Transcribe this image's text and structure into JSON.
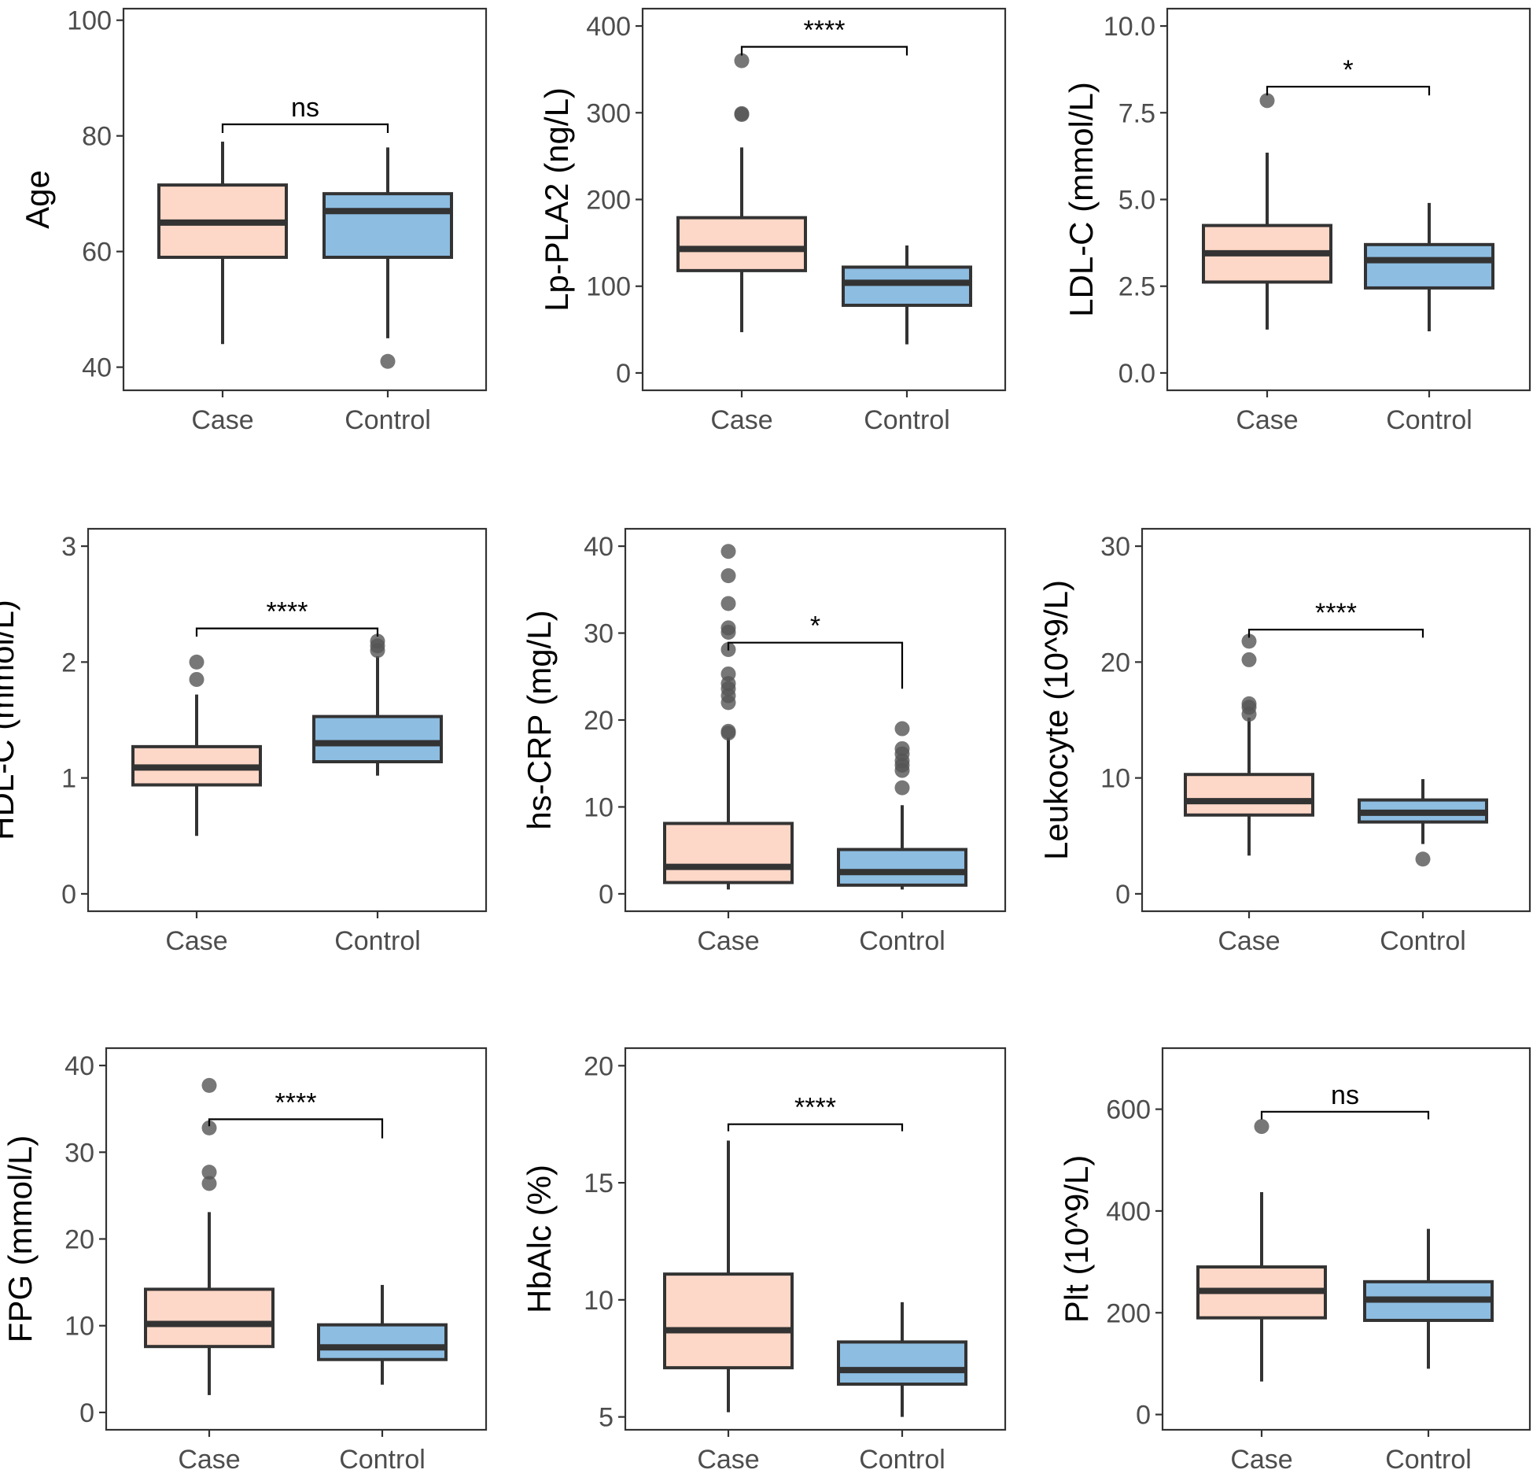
{
  "colors": {
    "case_fill": "#FDD7C7",
    "control_fill": "#8DBDE1",
    "box_stroke": "#333333",
    "outlier": "#555555"
  },
  "chart_data": [
    {
      "type": "box",
      "ylabel": "Age",
      "ylim": [
        36,
        102
      ],
      "yticks": [
        40,
        60,
        80,
        100
      ],
      "ytick_labels": [
        "40",
        "60",
        "80",
        "100"
      ],
      "groups": [
        {
          "name": "Case",
          "min": 44,
          "q1": 59,
          "median": 65,
          "q3": 71.5,
          "max": 79,
          "outliers": []
        },
        {
          "name": "Control",
          "min": 45,
          "q1": 59,
          "median": 67,
          "q3": 70,
          "max": 78,
          "outliers": [
            41
          ]
        }
      ],
      "significance": {
        "label": "ns",
        "y": 82,
        "drop_left": 1.5,
        "drop_right": 1.5
      }
    },
    {
      "type": "box",
      "ylabel": "Lp-PLA2 (ng/L)",
      "ylim": [
        -20,
        420
      ],
      "yticks": [
        0,
        100,
        200,
        300,
        400
      ],
      "ytick_labels": [
        "0",
        "100",
        "200",
        "300",
        "400"
      ],
      "groups": [
        {
          "name": "Case",
          "min": 47,
          "q1": 118,
          "median": 143,
          "q3": 179,
          "max": 260,
          "outliers": [
            298,
            299,
            360
          ]
        },
        {
          "name": "Control",
          "min": 33,
          "q1": 78,
          "median": 104,
          "q3": 122,
          "max": 147,
          "outliers": []
        }
      ],
      "significance": {
        "label": "****",
        "y": 376,
        "drop_left": 10,
        "drop_right": 10
      }
    },
    {
      "type": "box",
      "ylabel": "LDL-C (mmol/L)",
      "ylim": [
        -0.5,
        10.5
      ],
      "yticks": [
        0,
        2.5,
        5,
        7.5,
        10
      ],
      "ytick_labels": [
        "0.0",
        "2.5",
        "5.0",
        "7.5",
        "10.0"
      ],
      "groups": [
        {
          "name": "Case",
          "min": 1.25,
          "q1": 2.62,
          "median": 3.45,
          "q3": 4.25,
          "max": 6.35,
          "outliers": [
            7.85
          ]
        },
        {
          "name": "Control",
          "min": 1.2,
          "q1": 2.45,
          "median": 3.25,
          "q3": 3.7,
          "max": 4.9,
          "outliers": []
        }
      ],
      "significance": {
        "label": "*",
        "y": 8.25,
        "drop_left": 0.25,
        "drop_right": 0.25
      }
    },
    {
      "type": "box",
      "ylabel": "HDL-C (mmol/L)",
      "ylim": [
        -0.15,
        3.15
      ],
      "yticks": [
        0,
        1,
        2,
        3
      ],
      "ytick_labels": [
        "0",
        "1",
        "2",
        "3"
      ],
      "groups": [
        {
          "name": "Case",
          "min": 0.5,
          "q1": 0.94,
          "median": 1.09,
          "q3": 1.27,
          "max": 1.72,
          "outliers": [
            1.85,
            2.0
          ]
        },
        {
          "name": "Control",
          "min": 1.02,
          "q1": 1.14,
          "median": 1.3,
          "q3": 1.53,
          "max": 2.05,
          "outliers": [
            2.1,
            2.14,
            2.18
          ]
        }
      ],
      "significance": {
        "label": "****",
        "y": 2.29,
        "drop_left": 0.07,
        "drop_right": 0.07
      }
    },
    {
      "type": "box",
      "ylabel": "hs-CRP (mg/L)",
      "ylim": [
        -2,
        42
      ],
      "yticks": [
        0,
        10,
        20,
        30,
        40
      ],
      "ytick_labels": [
        "0",
        "10",
        "20",
        "30",
        "40"
      ],
      "groups": [
        {
          "name": "Case",
          "min": 0.5,
          "q1": 1.3,
          "median": 3.1,
          "q3": 8.1,
          "max": 18,
          "outliers": [
            18.5,
            18.7,
            22,
            22.8,
            23.6,
            24.2,
            25.3,
            28.1,
            30.1,
            30.6,
            33.4,
            36.6,
            39.4
          ]
        },
        {
          "name": "Control",
          "min": 0.5,
          "q1": 1.0,
          "median": 2.5,
          "q3": 5.1,
          "max": 10.2,
          "outliers": [
            12.2,
            14.2,
            14.8,
            15.3,
            16.1,
            16.7,
            19
          ]
        }
      ],
      "significance": {
        "label": "*",
        "y": 28.9,
        "drop_left": 0.9,
        "drop_right": 5.3
      }
    },
    {
      "type": "box",
      "ylabel": "Leukocyte (10^9/L)",
      "ylim": [
        -1.5,
        31.5
      ],
      "yticks": [
        0,
        10,
        20,
        30
      ],
      "ytick_labels": [
        "0",
        "10",
        "20",
        "30"
      ],
      "groups": [
        {
          "name": "Case",
          "min": 3.3,
          "q1": 6.8,
          "median": 8.0,
          "q3": 10.3,
          "max": 15.2,
          "outliers": [
            15.5,
            16.1,
            16.4,
            20.2,
            21.8
          ]
        },
        {
          "name": "Control",
          "min": 4.3,
          "q1": 6.2,
          "median": 7.0,
          "q3": 8.1,
          "max": 9.9,
          "outliers": [
            3.0
          ]
        }
      ],
      "significance": {
        "label": "****",
        "y": 22.8,
        "drop_left": 0.7,
        "drop_right": 0.7
      }
    },
    {
      "type": "box",
      "ylabel": "FPG (mmol/L)",
      "ylim": [
        -2,
        42
      ],
      "yticks": [
        0,
        10,
        20,
        30,
        40
      ],
      "ytick_labels": [
        "0",
        "10",
        "20",
        "30",
        "40"
      ],
      "groups": [
        {
          "name": "Case",
          "min": 2.0,
          "q1": 7.6,
          "median": 10.2,
          "q3": 14.2,
          "max": 23.1,
          "outliers": [
            26.4,
            27.7,
            32.8,
            37.7
          ]
        },
        {
          "name": "Control",
          "min": 3.2,
          "q1": 6.1,
          "median": 7.5,
          "q3": 10.1,
          "max": 14.7,
          "outliers": []
        }
      ],
      "significance": {
        "label": "****",
        "y": 33.8,
        "drop_left": 0.8,
        "drop_right": 2.2
      }
    },
    {
      "type": "box",
      "ylabel": "HbAlc (%)",
      "ylim": [
        4.45,
        20.75
      ],
      "yticks": [
        5,
        10,
        15,
        20
      ],
      "ytick_labels": [
        "5",
        "10",
        "15",
        "20"
      ],
      "groups": [
        {
          "name": "Case",
          "min": 5.2,
          "q1": 7.1,
          "median": 8.7,
          "q3": 11.1,
          "max": 16.8,
          "outliers": []
        },
        {
          "name": "Control",
          "min": 5.0,
          "q1": 6.4,
          "median": 7.0,
          "q3": 8.2,
          "max": 9.9,
          "outliers": []
        }
      ],
      "significance": {
        "label": "****",
        "y": 17.5,
        "drop_left": 0.3,
        "drop_right": 0.3
      }
    },
    {
      "type": "box",
      "ylabel": "Plt (10^9/L)",
      "ylim": [
        -30,
        720
      ],
      "yticks": [
        0,
        200,
        400,
        600
      ],
      "ytick_labels": [
        "0",
        "200",
        "400",
        "600"
      ],
      "groups": [
        {
          "name": "Case",
          "min": 65,
          "q1": 190,
          "median": 243,
          "q3": 290,
          "max": 437,
          "outliers": [
            566
          ]
        },
        {
          "name": "Control",
          "min": 90,
          "q1": 185,
          "median": 226,
          "q3": 261,
          "max": 365,
          "outliers": []
        }
      ],
      "significance": {
        "label": "ns",
        "y": 595,
        "drop_left": 15,
        "drop_right": 15
      }
    }
  ]
}
